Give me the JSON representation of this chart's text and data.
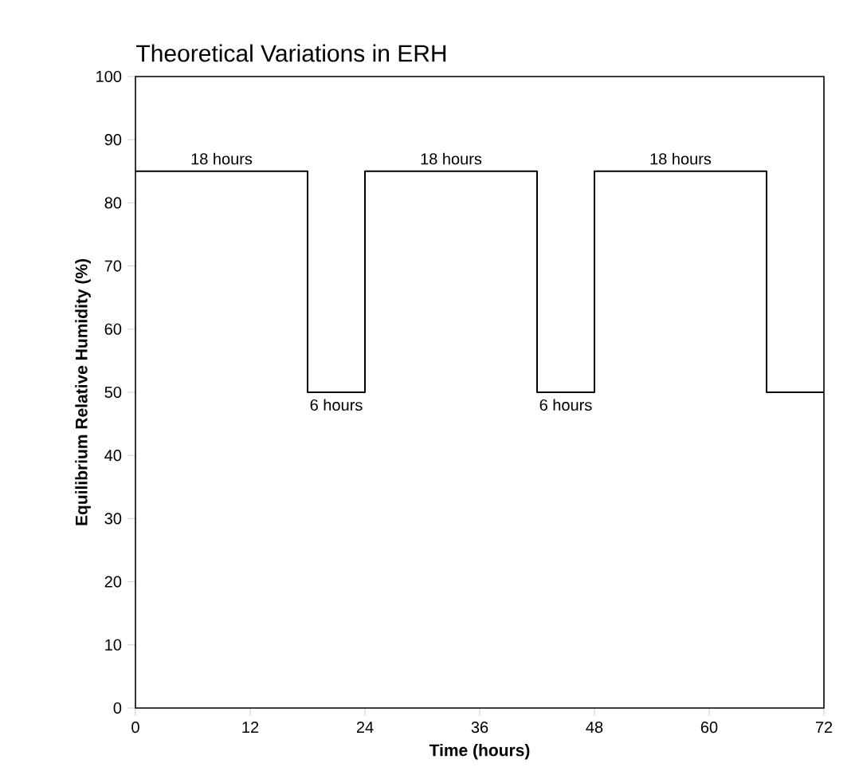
{
  "chart_data": {
    "type": "line",
    "title": "Theoretical Variations in ERH",
    "xlabel": "Time (hours)",
    "ylabel": "Equilibrium Relative Humidity (%)",
    "x": [
      0,
      18,
      18,
      24,
      24,
      42,
      42,
      48,
      48,
      66,
      66,
      72
    ],
    "values": [
      85,
      85,
      50,
      50,
      85,
      85,
      50,
      50,
      85,
      85,
      50,
      50
    ],
    "color": "#000000",
    "xlim": [
      0,
      72
    ],
    "xticks": [
      0,
      12,
      24,
      36,
      48,
      60,
      72
    ],
    "ylim": [
      0,
      100
    ],
    "yticks": [
      0,
      10,
      20,
      30,
      40,
      50,
      60,
      70,
      80,
      90,
      100
    ],
    "grid": false,
    "marker": "none",
    "line_style": "solid",
    "annotations": [
      {
        "text": "18 hours",
        "x": 9,
        "y": 85
      },
      {
        "text": "6 hours",
        "x": 21,
        "y": 50
      },
      {
        "text": "18 hours",
        "x": 33,
        "y": 85
      },
      {
        "text": "6 hours",
        "x": 45,
        "y": 50
      },
      {
        "text": "18 hours",
        "x": 57,
        "y": 85
      }
    ]
  }
}
